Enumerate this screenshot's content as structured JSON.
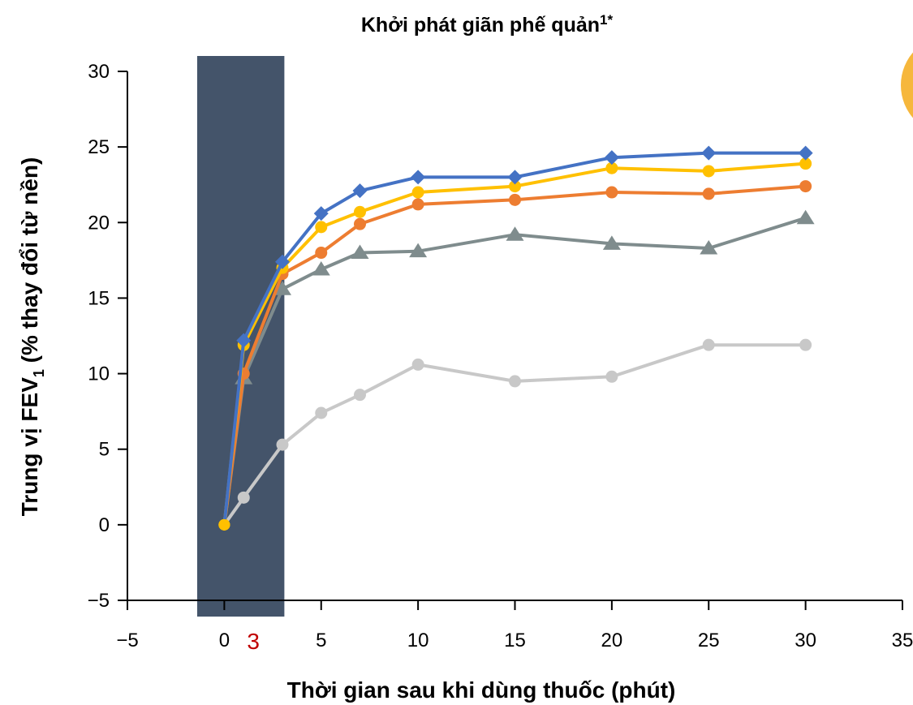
{
  "chart_data": {
    "type": "line",
    "title": "Khởi phát giãn phế quản",
    "title_superscript": "1*",
    "xlabel": "Thời gian sau khi dùng thuốc (phút)",
    "ylabel_prefix": "Trung vị FEV",
    "ylabel_subscript": "1",
    "ylabel_suffix": " (% thay đổi từ nền)",
    "xlim": [
      -5,
      35
    ],
    "ylim": [
      -5,
      30
    ],
    "x_ticks": [
      "−5",
      "0",
      "5",
      "10",
      "15",
      "20",
      "25",
      "30",
      "35"
    ],
    "x_tick_values": [
      -5,
      0,
      5,
      10,
      15,
      20,
      25,
      30,
      35
    ],
    "y_ticks": [
      "−5",
      "0",
      "5",
      "10",
      "15",
      "20",
      "25",
      "30"
    ],
    "y_tick_values": [
      -5,
      0,
      5,
      10,
      15,
      20,
      25,
      30
    ],
    "extra_x_label": {
      "text": "3",
      "x": 1.5,
      "color": "#c00000"
    },
    "shaded_region": {
      "x_start": -1.4,
      "x_end": 3.1,
      "color": "#44546a"
    },
    "grid": false,
    "series": [
      {
        "color": "#c8c8c8",
        "marker": "circle",
        "x": [
          0,
          1,
          3,
          5,
          7,
          10,
          15,
          20,
          25,
          30
        ],
        "y": [
          0,
          1.8,
          5.3,
          7.4,
          8.6,
          10.6,
          9.5,
          9.8,
          11.9,
          11.9
        ]
      },
      {
        "color": "#7f8c8d",
        "marker": "triangle",
        "x": [
          0,
          1,
          3,
          5,
          7,
          10,
          15,
          20,
          25,
          30
        ],
        "y": [
          0,
          9.7,
          15.6,
          16.9,
          18.0,
          18.1,
          19.2,
          18.6,
          18.3,
          20.3
        ]
      },
      {
        "color": "#ed7d31",
        "marker": "circle",
        "x": [
          0,
          1,
          3,
          5,
          7,
          10,
          15,
          20,
          25,
          30
        ],
        "y": [
          0,
          10.0,
          16.6,
          18.0,
          19.9,
          21.2,
          21.5,
          22.0,
          21.9,
          22.4
        ]
      },
      {
        "color": "#ffc000",
        "marker": "circle",
        "x": [
          0,
          1,
          3,
          5,
          7,
          10,
          15,
          20,
          25,
          30
        ],
        "y": [
          0,
          11.9,
          17.0,
          19.7,
          20.7,
          22.0,
          22.4,
          23.6,
          23.4,
          23.9
        ]
      },
      {
        "color": "#4472c4",
        "marker": "diamond",
        "x": [
          0,
          1,
          3,
          5,
          7,
          10,
          15,
          20,
          25,
          30
        ],
        "y": [
          0,
          12.2,
          17.4,
          20.6,
          22.1,
          23.0,
          23.0,
          24.3,
          24.6,
          24.6
        ]
      }
    ]
  }
}
